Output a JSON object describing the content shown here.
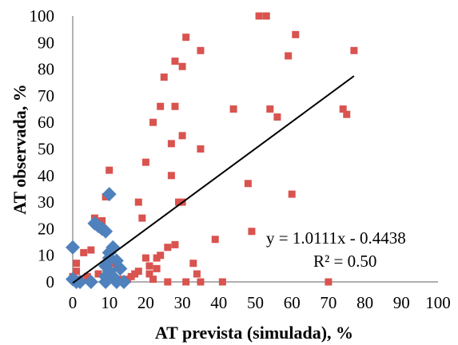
{
  "chart_data": {
    "type": "scatter",
    "xlabel": "AT prevista (simulada), %",
    "ylabel": "AT observada, %",
    "xlim": [
      0,
      100
    ],
    "ylim": [
      0,
      100
    ],
    "x_ticks": [
      0,
      10,
      20,
      30,
      40,
      50,
      60,
      70,
      80,
      90,
      100
    ],
    "y_ticks": [
      0,
      10,
      20,
      30,
      40,
      50,
      60,
      70,
      80,
      90,
      100
    ],
    "grid": false,
    "colors": {
      "diamond": "#4f81bd",
      "square": "#d9534f",
      "trendline": "#000000"
    },
    "series": [
      {
        "marker": "diamond",
        "color": "#4f81bd",
        "points": [
          [
            0,
            13
          ],
          [
            0,
            1
          ],
          [
            1,
            0
          ],
          [
            2,
            0
          ],
          [
            5,
            0
          ],
          [
            6,
            22
          ],
          [
            8,
            20
          ],
          [
            9,
            19
          ],
          [
            7,
            21
          ],
          [
            10,
            33
          ],
          [
            10,
            11
          ],
          [
            11,
            13
          ],
          [
            10,
            9
          ],
          [
            9,
            6
          ],
          [
            10,
            4
          ],
          [
            9,
            2
          ],
          [
            12,
            0
          ],
          [
            14,
            0
          ],
          [
            9,
            0
          ],
          [
            11,
            2
          ],
          [
            12,
            8
          ],
          [
            13,
            5
          ]
        ]
      },
      {
        "marker": "square",
        "color": "#d9534f",
        "points": [
          [
            0,
            2
          ],
          [
            1,
            7
          ],
          [
            1,
            4
          ],
          [
            2,
            1
          ],
          [
            3,
            11
          ],
          [
            4,
            2
          ],
          [
            5,
            12
          ],
          [
            6,
            24
          ],
          [
            7,
            3
          ],
          [
            8,
            23
          ],
          [
            9,
            32
          ],
          [
            10,
            42
          ],
          [
            11,
            7
          ],
          [
            12,
            6
          ],
          [
            13,
            1
          ],
          [
            15,
            1
          ],
          [
            16,
            2
          ],
          [
            17,
            3
          ],
          [
            18,
            30
          ],
          [
            18,
            4
          ],
          [
            19,
            24
          ],
          [
            20,
            45
          ],
          [
            20,
            9
          ],
          [
            21,
            3
          ],
          [
            21,
            6
          ],
          [
            22,
            60
          ],
          [
            22,
            1
          ],
          [
            23,
            9
          ],
          [
            23,
            5
          ],
          [
            24,
            66
          ],
          [
            24,
            10
          ],
          [
            25,
            77
          ],
          [
            26,
            13
          ],
          [
            26,
            0
          ],
          [
            27,
            52
          ],
          [
            27,
            40
          ],
          [
            28,
            83
          ],
          [
            28,
            66
          ],
          [
            28,
            14
          ],
          [
            29,
            30
          ],
          [
            30,
            55
          ],
          [
            30,
            81
          ],
          [
            30,
            30
          ],
          [
            31,
            92
          ],
          [
            31,
            0
          ],
          [
            33,
            7
          ],
          [
            34,
            3
          ],
          [
            35,
            87
          ],
          [
            35,
            50
          ],
          [
            35,
            0
          ],
          [
            39,
            16
          ],
          [
            41,
            0
          ],
          [
            44,
            65
          ],
          [
            48,
            37
          ],
          [
            49,
            19
          ],
          [
            51,
            100
          ],
          [
            53,
            100
          ],
          [
            54,
            65
          ],
          [
            56,
            62
          ],
          [
            59,
            85
          ],
          [
            60,
            33
          ],
          [
            61,
            93
          ],
          [
            70,
            0
          ],
          [
            74,
            65
          ],
          [
            75,
            63
          ],
          [
            77,
            87
          ]
        ]
      }
    ],
    "trendline": {
      "slope": 1.0111,
      "intercept": -0.4438,
      "x_range": [
        0,
        77
      ]
    },
    "annotations": [
      "y = 1.0111x - 0.4438",
      "R² = 0.50"
    ]
  }
}
